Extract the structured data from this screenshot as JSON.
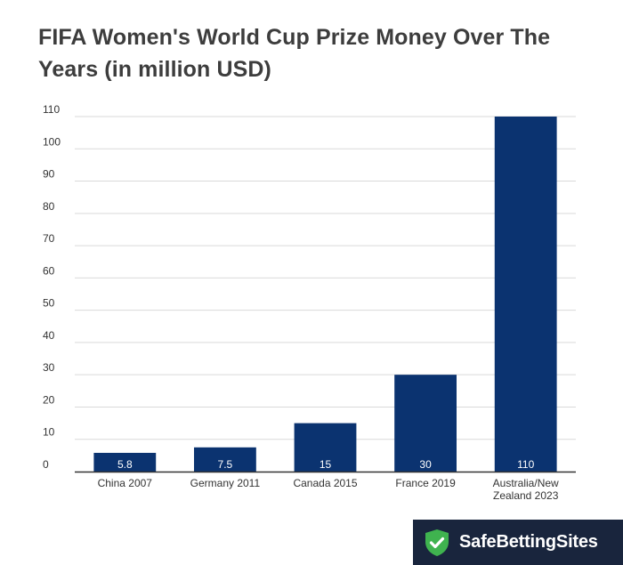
{
  "chart_data": {
    "type": "bar",
    "title": "FIFA Women's World Cup Prize Money Over The Years (in million USD)",
    "categories": [
      [
        "China 2007"
      ],
      [
        "Germany 2011"
      ],
      [
        "Canada 2015"
      ],
      [
        "France 2019"
      ],
      [
        "Australia/New",
        "Zealand 2023"
      ]
    ],
    "values": [
      5.8,
      7.5,
      15,
      30,
      110
    ],
    "data_labels": [
      "5.8",
      "7.5",
      "15",
      "30",
      "110"
    ],
    "xlabel": "",
    "ylabel": "",
    "ylim": [
      0,
      110
    ],
    "yticks": [
      0,
      10,
      20,
      30,
      40,
      50,
      60,
      70,
      80,
      90,
      100,
      110
    ],
    "grid": true,
    "legend": "none"
  },
  "colors": {
    "bar": "#0b3370",
    "grid": "#d9d9d9",
    "axis": "#333333",
    "title": "#3d3d3d",
    "brand_bg": "#19253d",
    "brand_accent": "#3fb34f"
  },
  "brand": {
    "name": "SafeBettingSites",
    "icon": "shield-check-icon"
  }
}
